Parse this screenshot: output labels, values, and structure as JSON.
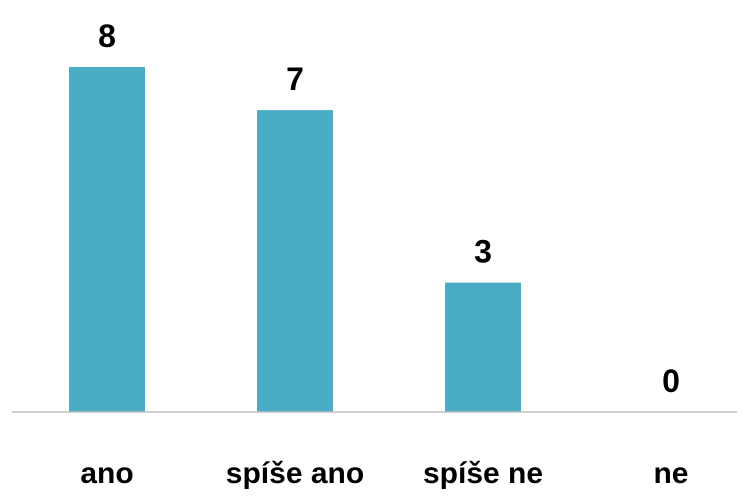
{
  "chart_data": {
    "type": "bar",
    "categories": [
      "ano",
      "spíše ano",
      "spíše ne",
      "ne"
    ],
    "values": [
      8,
      7,
      3,
      0
    ],
    "title": "",
    "xlabel": "",
    "ylabel": "",
    "ylim": [
      0,
      8
    ],
    "grid": false,
    "legend": "none",
    "data_labels": true,
    "colors": {
      "bar": "#4BACC6",
      "axis": "#BFBFBF",
      "text": "#000000"
    }
  }
}
